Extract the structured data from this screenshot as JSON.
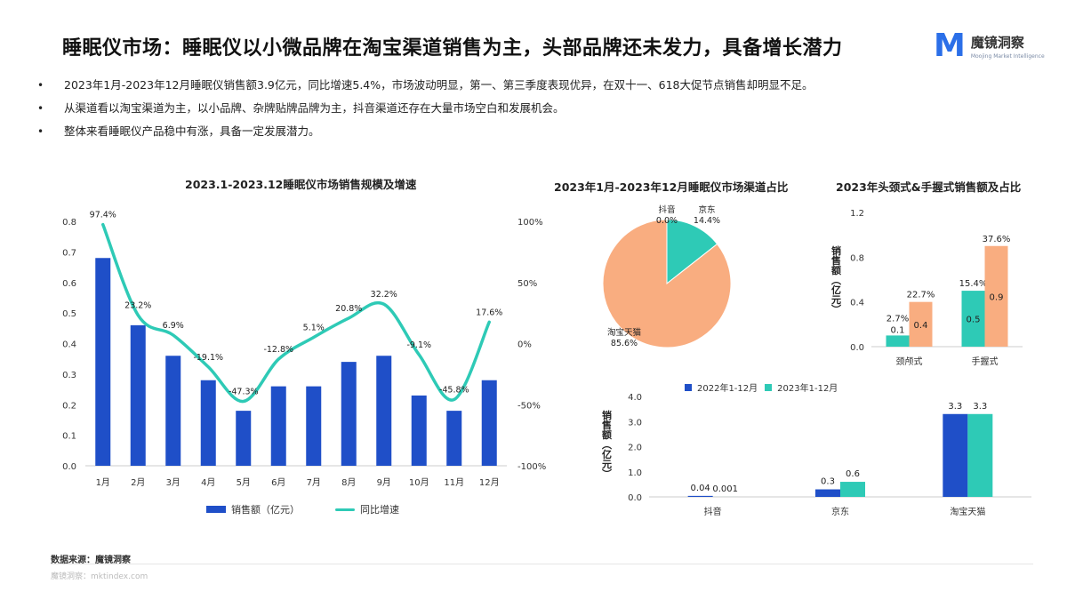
{
  "header": {
    "title": "睡眠仪市场：睡眠仪以小微品牌在淘宝渠道销售为主，头部品牌还未发力，具备增长潜力",
    "logo_mark": "M",
    "logo_cn": "魔镜洞察",
    "logo_en": "Moojing Market Intelligence"
  },
  "bullets": [
    "2023年1月-2023年12月睡眠仪销售额3.9亿元，同比增速5.4%，市场波动明显，第一、第三季度表现优异，在双十一、618大促节点销售却明显不足。",
    "从渠道看以淘宝渠道为主，以小品牌、杂牌贴牌品牌为主，抖音渠道还存在大量市场空白和发展机会。",
    "整体来看睡眠仪产品稳中有涨，具备一定发展潜力。"
  ],
  "bullet_symbol": "•",
  "colors": {
    "blue": "#1f4fc8",
    "teal": "#2ecab6",
    "orange": "#f9ad80",
    "axis": "#cccccc"
  },
  "chart_data": [
    {
      "type": "bar",
      "title": "2023.1-2023.12睡眠仪市场销售规模及增速",
      "categories": [
        "1月",
        "2月",
        "3月",
        "4月",
        "5月",
        "6月",
        "7月",
        "8月",
        "9月",
        "10月",
        "11月",
        "12月"
      ],
      "series": [
        {
          "name": "销售额（亿元）",
          "type": "bar",
          "axis": "left",
          "values": [
            0.68,
            0.46,
            0.36,
            0.28,
            0.18,
            0.26,
            0.26,
            0.34,
            0.36,
            0.23,
            0.18,
            0.28
          ]
        },
        {
          "name": "同比增速",
          "type": "line",
          "axis": "right",
          "values": [
            97.4,
            23.2,
            6.9,
            -19.1,
            -47.3,
            -12.8,
            5.1,
            20.8,
            32.2,
            -9.1,
            -45.8,
            17.6
          ],
          "labels": [
            "97.4%",
            "23.2%",
            "6.9%",
            "-19.1%",
            "-47.3%",
            "-12.8%",
            "5.1%",
            "20.8%",
            "32.2%",
            "-9.1%",
            "-45.8%",
            "17.6%"
          ]
        }
      ],
      "ylim": [
        0,
        0.8
      ],
      "yticks": [
        "0.0",
        "0.1",
        "0.2",
        "0.3",
        "0.4",
        "0.5",
        "0.6",
        "0.7",
        "0.8"
      ],
      "y2lim": [
        -100,
        100
      ],
      "y2ticks": [
        "-100%",
        "-50%",
        "0%",
        "50%",
        "100%"
      ],
      "legend": "bottom"
    },
    {
      "type": "pie",
      "title": "2023年1月-2023年12月睡眠仪市场渠道占比",
      "slices": [
        {
          "name": "京东",
          "value": 14.4,
          "label": "14.4%"
        },
        {
          "name": "抖音",
          "value": 0.0,
          "label": "0.0%"
        },
        {
          "name": "淘宝天猫",
          "value": 85.6,
          "label": "85.6%"
        }
      ]
    },
    {
      "type": "bar",
      "title": "2023年头颈式&手握式销售额及占比",
      "categories": [
        "颈颅式",
        "手握式"
      ],
      "ylabel": "销售额（亿元）",
      "ylim": [
        0,
        1.2
      ],
      "yticks": [
        "0.0",
        "0.4",
        "0.8",
        "1.2"
      ],
      "series": [
        {
          "values": [
            0.1,
            0.5
          ],
          "value_labels": [
            "0.1",
            "0.5"
          ],
          "share_labels": [
            "2.7%",
            "15.4%"
          ]
        },
        {
          "values": [
            0.4,
            0.9
          ],
          "value_labels": [
            "0.4",
            "0.9"
          ],
          "share_labels": [
            "22.7%",
            "37.6%"
          ]
        }
      ]
    },
    {
      "type": "bar",
      "categories": [
        "抖音",
        "京东",
        "淘宝天猫"
      ],
      "ylabel": "销售额（亿元）",
      "ylim": [
        0,
        4.0
      ],
      "yticks": [
        "0.0",
        "1.0",
        "2.0",
        "3.0",
        "4.0"
      ],
      "series": [
        {
          "name": "2022年1-12月",
          "values": [
            0.04,
            0.3,
            3.3
          ],
          "labels": [
            "0.04",
            "0.3",
            "3.3"
          ]
        },
        {
          "name": "2023年1-12月",
          "values": [
            0.001,
            0.6,
            3.3
          ],
          "labels": [
            "0.001",
            "0.6",
            "3.3"
          ]
        }
      ],
      "legend": "top"
    }
  ],
  "footer": {
    "source": "数据来源：魔镜洞察",
    "url": "魔镜洞察：mktindex.com"
  }
}
